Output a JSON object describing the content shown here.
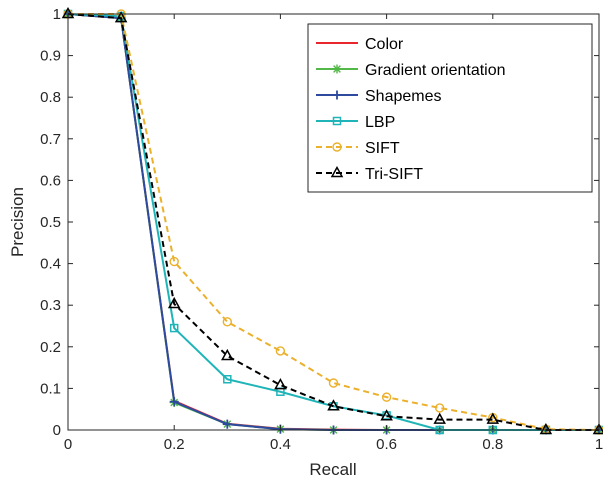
{
  "chart_data": {
    "type": "line",
    "title": "",
    "xlabel": "Recall",
    "ylabel": "Precision",
    "xlim": [
      0,
      1
    ],
    "ylim": [
      0,
      1
    ],
    "x": [
      0,
      0.1,
      0.2,
      0.3,
      0.4,
      0.5,
      0.6,
      0.7,
      0.8,
      0.9,
      1.0
    ],
    "x_ticks": [
      "0",
      "0.2",
      "0.4",
      "0.6",
      "0.8",
      "1"
    ],
    "y_ticks": [
      "0",
      "0.1",
      "0.2",
      "0.3",
      "0.4",
      "0.5",
      "0.6",
      "0.7",
      "0.8",
      "0.9",
      "1"
    ],
    "grid": false,
    "legend_position": "top-right",
    "series": [
      {
        "name": "Color",
        "color": "#e8262c",
        "line": "solid",
        "marker": "none",
        "values": [
          1,
          0.99,
          0.07,
          0.015,
          0.003,
          0.001,
          0,
          0,
          0,
          0,
          0
        ]
      },
      {
        "name": "Gradient orientation",
        "color": "#52b848",
        "line": "solid",
        "marker": "asterisk",
        "values": [
          1,
          0.99,
          0.066,
          0.014,
          0.002,
          0,
          0,
          0,
          0,
          0,
          0
        ]
      },
      {
        "name": "Shapemes",
        "color": "#2d4a9e",
        "line": "solid",
        "marker": "plus",
        "values": [
          1,
          0.99,
          0.068,
          0.014,
          0.002,
          0,
          0,
          0,
          0,
          0,
          0
        ]
      },
      {
        "name": "LBP",
        "color": "#1fb5b8",
        "line": "solid",
        "marker": "square",
        "values": [
          1,
          0.995,
          0.245,
          0.122,
          0.092,
          0.057,
          0.035,
          0,
          0,
          0,
          0
        ]
      },
      {
        "name": "SIFT",
        "color": "#ebb02c",
        "line": "dashed",
        "marker": "circle",
        "values": [
          1,
          1,
          0.405,
          0.26,
          0.19,
          0.113,
          0.079,
          0.053,
          0.03,
          0.002,
          0
        ]
      },
      {
        "name": "Tri-SIFT",
        "color": "#000000",
        "line": "dashed",
        "marker": "triangle",
        "values": [
          1,
          0.99,
          0.303,
          0.178,
          0.108,
          0.057,
          0.033,
          0.025,
          0.025,
          0,
          0
        ]
      }
    ]
  }
}
